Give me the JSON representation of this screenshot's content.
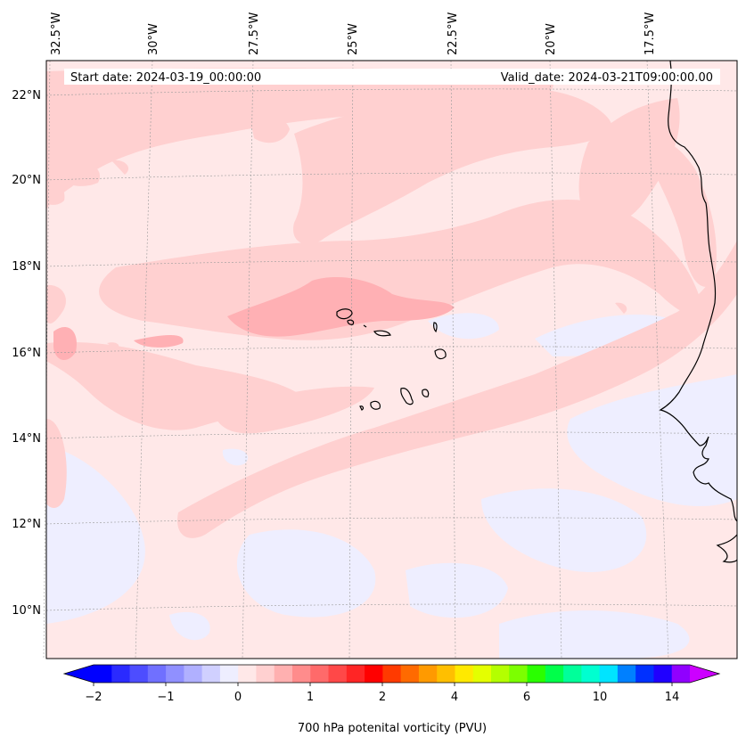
{
  "map": {
    "start_label": "Start date: 2024-03-19_00:00:00",
    "valid_label": "Valid_date: 2024-03-21T09:00:00.00",
    "lon_labels": [
      "32.5°W",
      "30°W",
      "27.5°W",
      "25°W",
      "22.5°W",
      "20°W",
      "17.5°W"
    ],
    "lat_labels": [
      "22°N",
      "20°N",
      "18°N",
      "16°N",
      "14°N",
      "12°N",
      "10°N"
    ],
    "gridlines": true,
    "coastline_color": "#000000"
  },
  "colorbar": {
    "label": "700 hPa potenital vorticity (PVU)",
    "tick_labels": [
      "−2",
      "−1",
      "0",
      "1",
      "2",
      "4",
      "6",
      "10",
      "14"
    ],
    "extend": "both",
    "colors": [
      "#0000ff",
      "#2a2aff",
      "#4d4dff",
      "#7070ff",
      "#9090ff",
      "#b0b0ff",
      "#d0d0ff",
      "#eeeeff",
      "#ffe8e8",
      "#ffd0d0",
      "#ffb0b0",
      "#ff8c8c",
      "#ff6a6a",
      "#ff4848",
      "#ff2525",
      "#ff0000",
      "#ff3a00",
      "#ff6a00",
      "#ff9a00",
      "#ffbf00",
      "#ffe900",
      "#e4ff00",
      "#b4ff00",
      "#7cff00",
      "#2aff00",
      "#00ff4a",
      "#00ff9a",
      "#00ffd0",
      "#00e4ff",
      "#0080ff",
      "#0030ff",
      "#2000ff",
      "#9000ff"
    ],
    "under_color": "#0000ff",
    "over_color": "#cc00ff"
  },
  "field_colors": {
    "background": "#ffe8e8",
    "light_blue": "#eeeeff",
    "pink": "#ffd0d0",
    "deep_pink": "#ffb0b4"
  }
}
